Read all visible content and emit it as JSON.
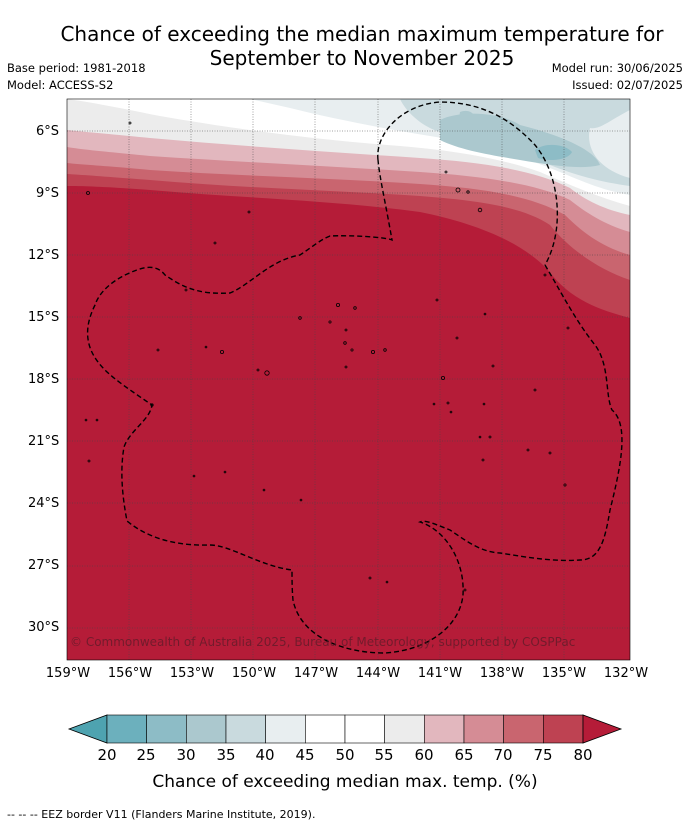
{
  "title_line1": "Chance of exceeding the median maximum temperature for",
  "title_line2": "September to November 2025",
  "base_period": "Base period: 1981-2018",
  "model": "Model: ACCESS-S2",
  "model_run": "Model run: 30/06/2025",
  "issued": "Issued: 02/07/2025",
  "lat_labels": [
    "6°S",
    "9°S",
    "12°S",
    "15°S",
    "18°S",
    "21°S",
    "24°S",
    "27°S",
    "30°S"
  ],
  "lon_labels": [
    "159°W",
    "156°W",
    "153°W",
    "150°W",
    "147°W",
    "144°W",
    "141°W",
    "138°W",
    "135°W",
    "132°W"
  ],
  "copyright": "© Commonwealth of Australia 2025, Bureau of Meteorology, supported by COSPPac",
  "colorbar": {
    "ticks": [
      "20",
      "25",
      "30",
      "35",
      "40",
      "45",
      "50",
      "55",
      "60",
      "65",
      "70",
      "75",
      "80"
    ],
    "colors": [
      "#4ea3b0",
      "#6cb0bd",
      "#8dbcc6",
      "#abc8ce",
      "#c9dade",
      "#e8eef0",
      "#ffffff",
      "#ffffff",
      "#ececec",
      "#e2b7be",
      "#d58c95",
      "#c9656f",
      "#be4252",
      "#b51c38"
    ],
    "label": "Chance of exceeding median max. temp. (%)"
  },
  "footnote": "-- -- -- EEZ border V11 (Flanders Marine Institute, 2019).",
  "colors": {
    "dominant": "#b51c38",
    "ocean_land_outline": "#000000"
  }
}
